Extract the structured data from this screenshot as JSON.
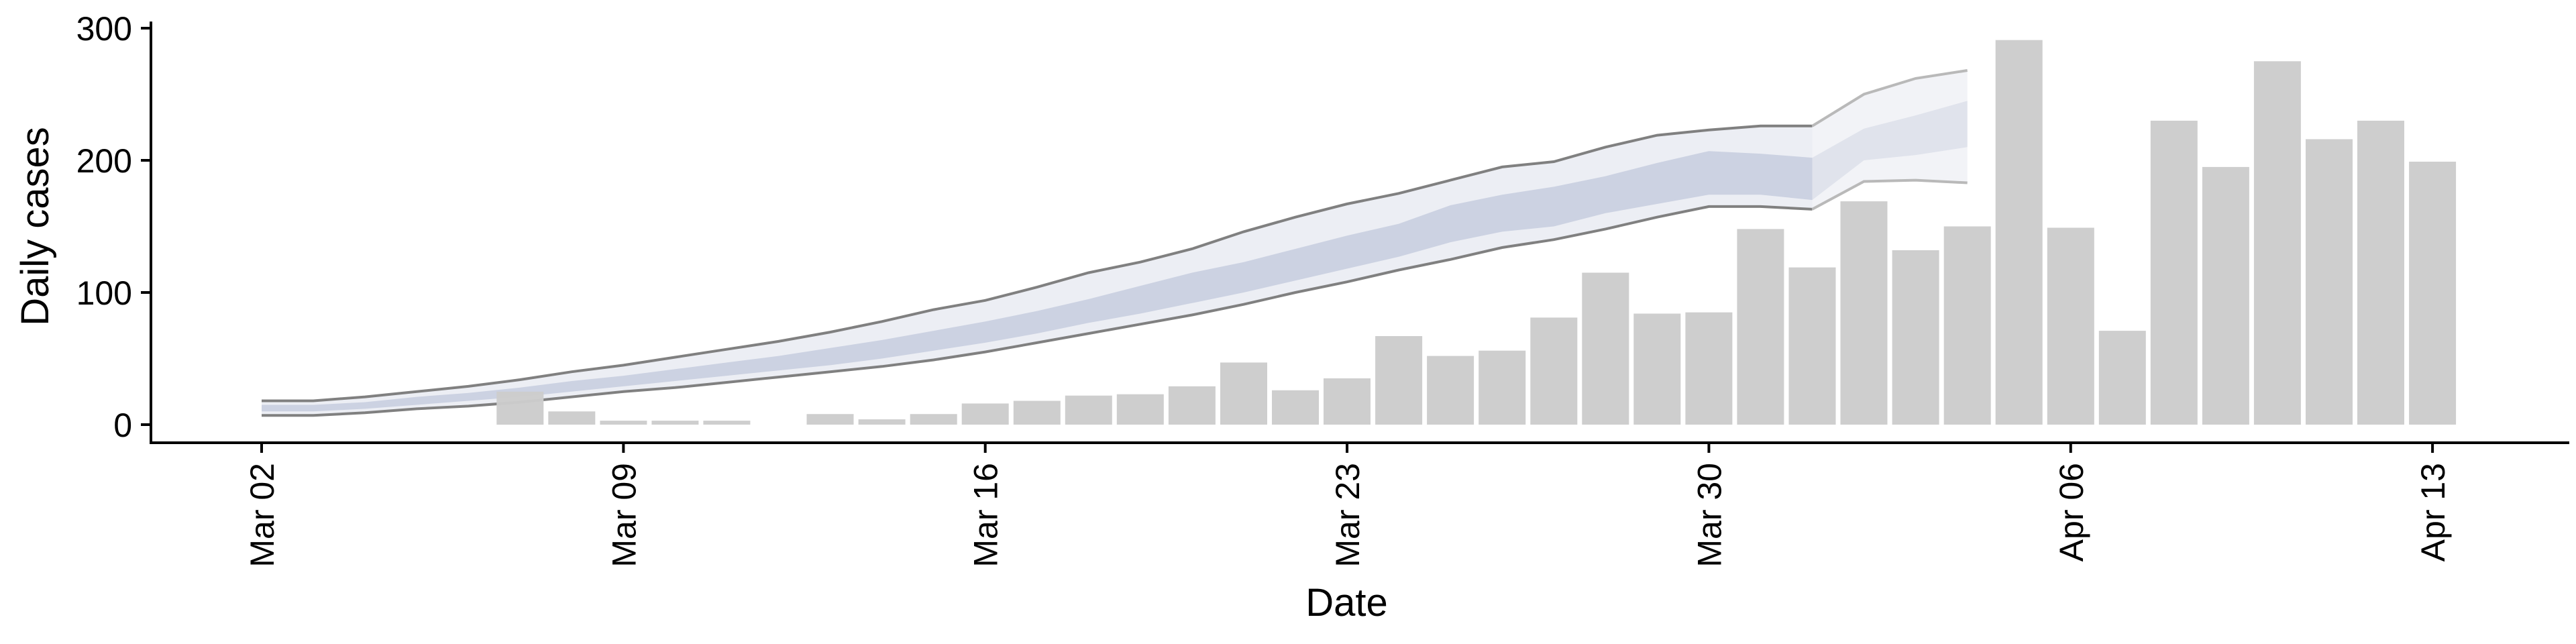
{
  "chart_data": {
    "type": "bar",
    "xlabel": "Date",
    "ylabel": "Daily cases",
    "ylim": [
      -12,
      305
    ],
    "yticks": [
      0,
      100,
      200,
      300
    ],
    "xticks": [
      "Mar 02",
      "Mar 09",
      "Mar 16",
      "Mar 23",
      "Mar 30",
      "Apr 06",
      "Apr 13"
    ],
    "bars": {
      "name": "Daily cases",
      "x": [
        "Mar 07",
        "Mar 08",
        "Mar 09",
        "Mar 10",
        "Mar 11",
        "Mar 13",
        "Mar 14",
        "Mar 15",
        "Mar 16",
        "Mar 17",
        "Mar 18",
        "Mar 19",
        "Mar 20",
        "Mar 21",
        "Mar 22",
        "Mar 23",
        "Mar 24",
        "Mar 25",
        "Mar 26",
        "Mar 27",
        "Mar 28",
        "Mar 29",
        "Mar 30",
        "Mar 31",
        "Apr 01",
        "Apr 02",
        "Apr 03",
        "Apr 04",
        "Apr 05",
        "Apr 06",
        "Apr 07",
        "Apr 08",
        "Apr 09",
        "Apr 10",
        "Apr 11",
        "Apr 12",
        "Apr 13"
      ],
      "values": [
        25,
        10,
        3,
        3,
        3,
        8,
        4,
        8,
        16,
        18,
        22,
        23,
        29,
        47,
        26,
        35,
        67,
        52,
        56,
        81,
        115,
        84,
        85,
        148,
        119,
        169,
        132,
        150,
        291,
        149,
        71,
        230,
        195,
        275,
        216,
        230,
        199
      ]
    },
    "nowcast": {
      "x": [
        "Mar 02",
        "Mar 03",
        "Mar 04",
        "Mar 05",
        "Mar 06",
        "Mar 07",
        "Mar 08",
        "Mar 09",
        "Mar 10",
        "Mar 11",
        "Mar 12",
        "Mar 13",
        "Mar 14",
        "Mar 15",
        "Mar 16",
        "Mar 17",
        "Mar 18",
        "Mar 19",
        "Mar 20",
        "Mar 21",
        "Mar 22",
        "Mar 23",
        "Mar 24",
        "Mar 25",
        "Mar 26",
        "Mar 27",
        "Mar 28",
        "Mar 29",
        "Mar 30",
        "Mar 31",
        "Apr 01"
      ],
      "upper90": [
        18,
        18,
        21,
        25,
        29,
        34,
        40,
        45,
        51,
        57,
        63,
        70,
        78,
        87,
        94,
        104,
        115,
        123,
        133,
        146,
        157,
        167,
        175,
        185,
        195,
        199,
        210,
        219,
        223,
        226,
        226
      ],
      "upper50": [
        15,
        15,
        17,
        21,
        24,
        28,
        33,
        37,
        42,
        47,
        52,
        58,
        64,
        71,
        78,
        86,
        95,
        105,
        115,
        123,
        133,
        143,
        152,
        166,
        174,
        180,
        188,
        198,
        207,
        205,
        202
      ],
      "lower50": [
        10,
        10,
        12,
        15,
        18,
        21,
        25,
        29,
        33,
        37,
        41,
        45,
        50,
        56,
        62,
        69,
        77,
        84,
        92,
        100,
        109,
        118,
        127,
        138,
        146,
        150,
        160,
        167,
        174,
        174,
        170
      ],
      "lower90": [
        7,
        7,
        9,
        12,
        14,
        17,
        21,
        25,
        28,
        32,
        36,
        40,
        44,
        49,
        55,
        62,
        69,
        76,
        83,
        91,
        100,
        108,
        117,
        125,
        134,
        140,
        148,
        157,
        165,
        165,
        163
      ],
      "median": [
        13,
        13,
        15,
        18,
        21,
        25,
        29,
        33,
        37,
        42,
        47,
        52,
        58,
        64,
        70,
        77,
        86,
        94,
        103,
        112,
        121,
        130,
        140,
        151,
        160,
        165,
        174,
        182,
        191,
        190,
        186
      ]
    },
    "forecast": {
      "x": [
        "Apr 01",
        "Apr 02",
        "Apr 03",
        "Apr 04"
      ],
      "upper90": [
        226,
        250,
        262,
        268
      ],
      "upper50": [
        202,
        224,
        234,
        245
      ],
      "lower50": [
        170,
        200,
        204,
        210
      ],
      "lower90": [
        163,
        184,
        185,
        183
      ],
      "median": [
        186,
        212,
        219,
        227
      ]
    },
    "grid": false,
    "legend": "none",
    "colors": {
      "bar": "#cccccc",
      "nowcast_outer": "#eceef4",
      "nowcast_inner": "#ccd2e2",
      "nowcast_line": "#808080",
      "forecast_outer": "#f2f3f7",
      "forecast_inner": "#e0e3ec",
      "forecast_line": "#b9b9b9",
      "axis": "#000000"
    }
  }
}
